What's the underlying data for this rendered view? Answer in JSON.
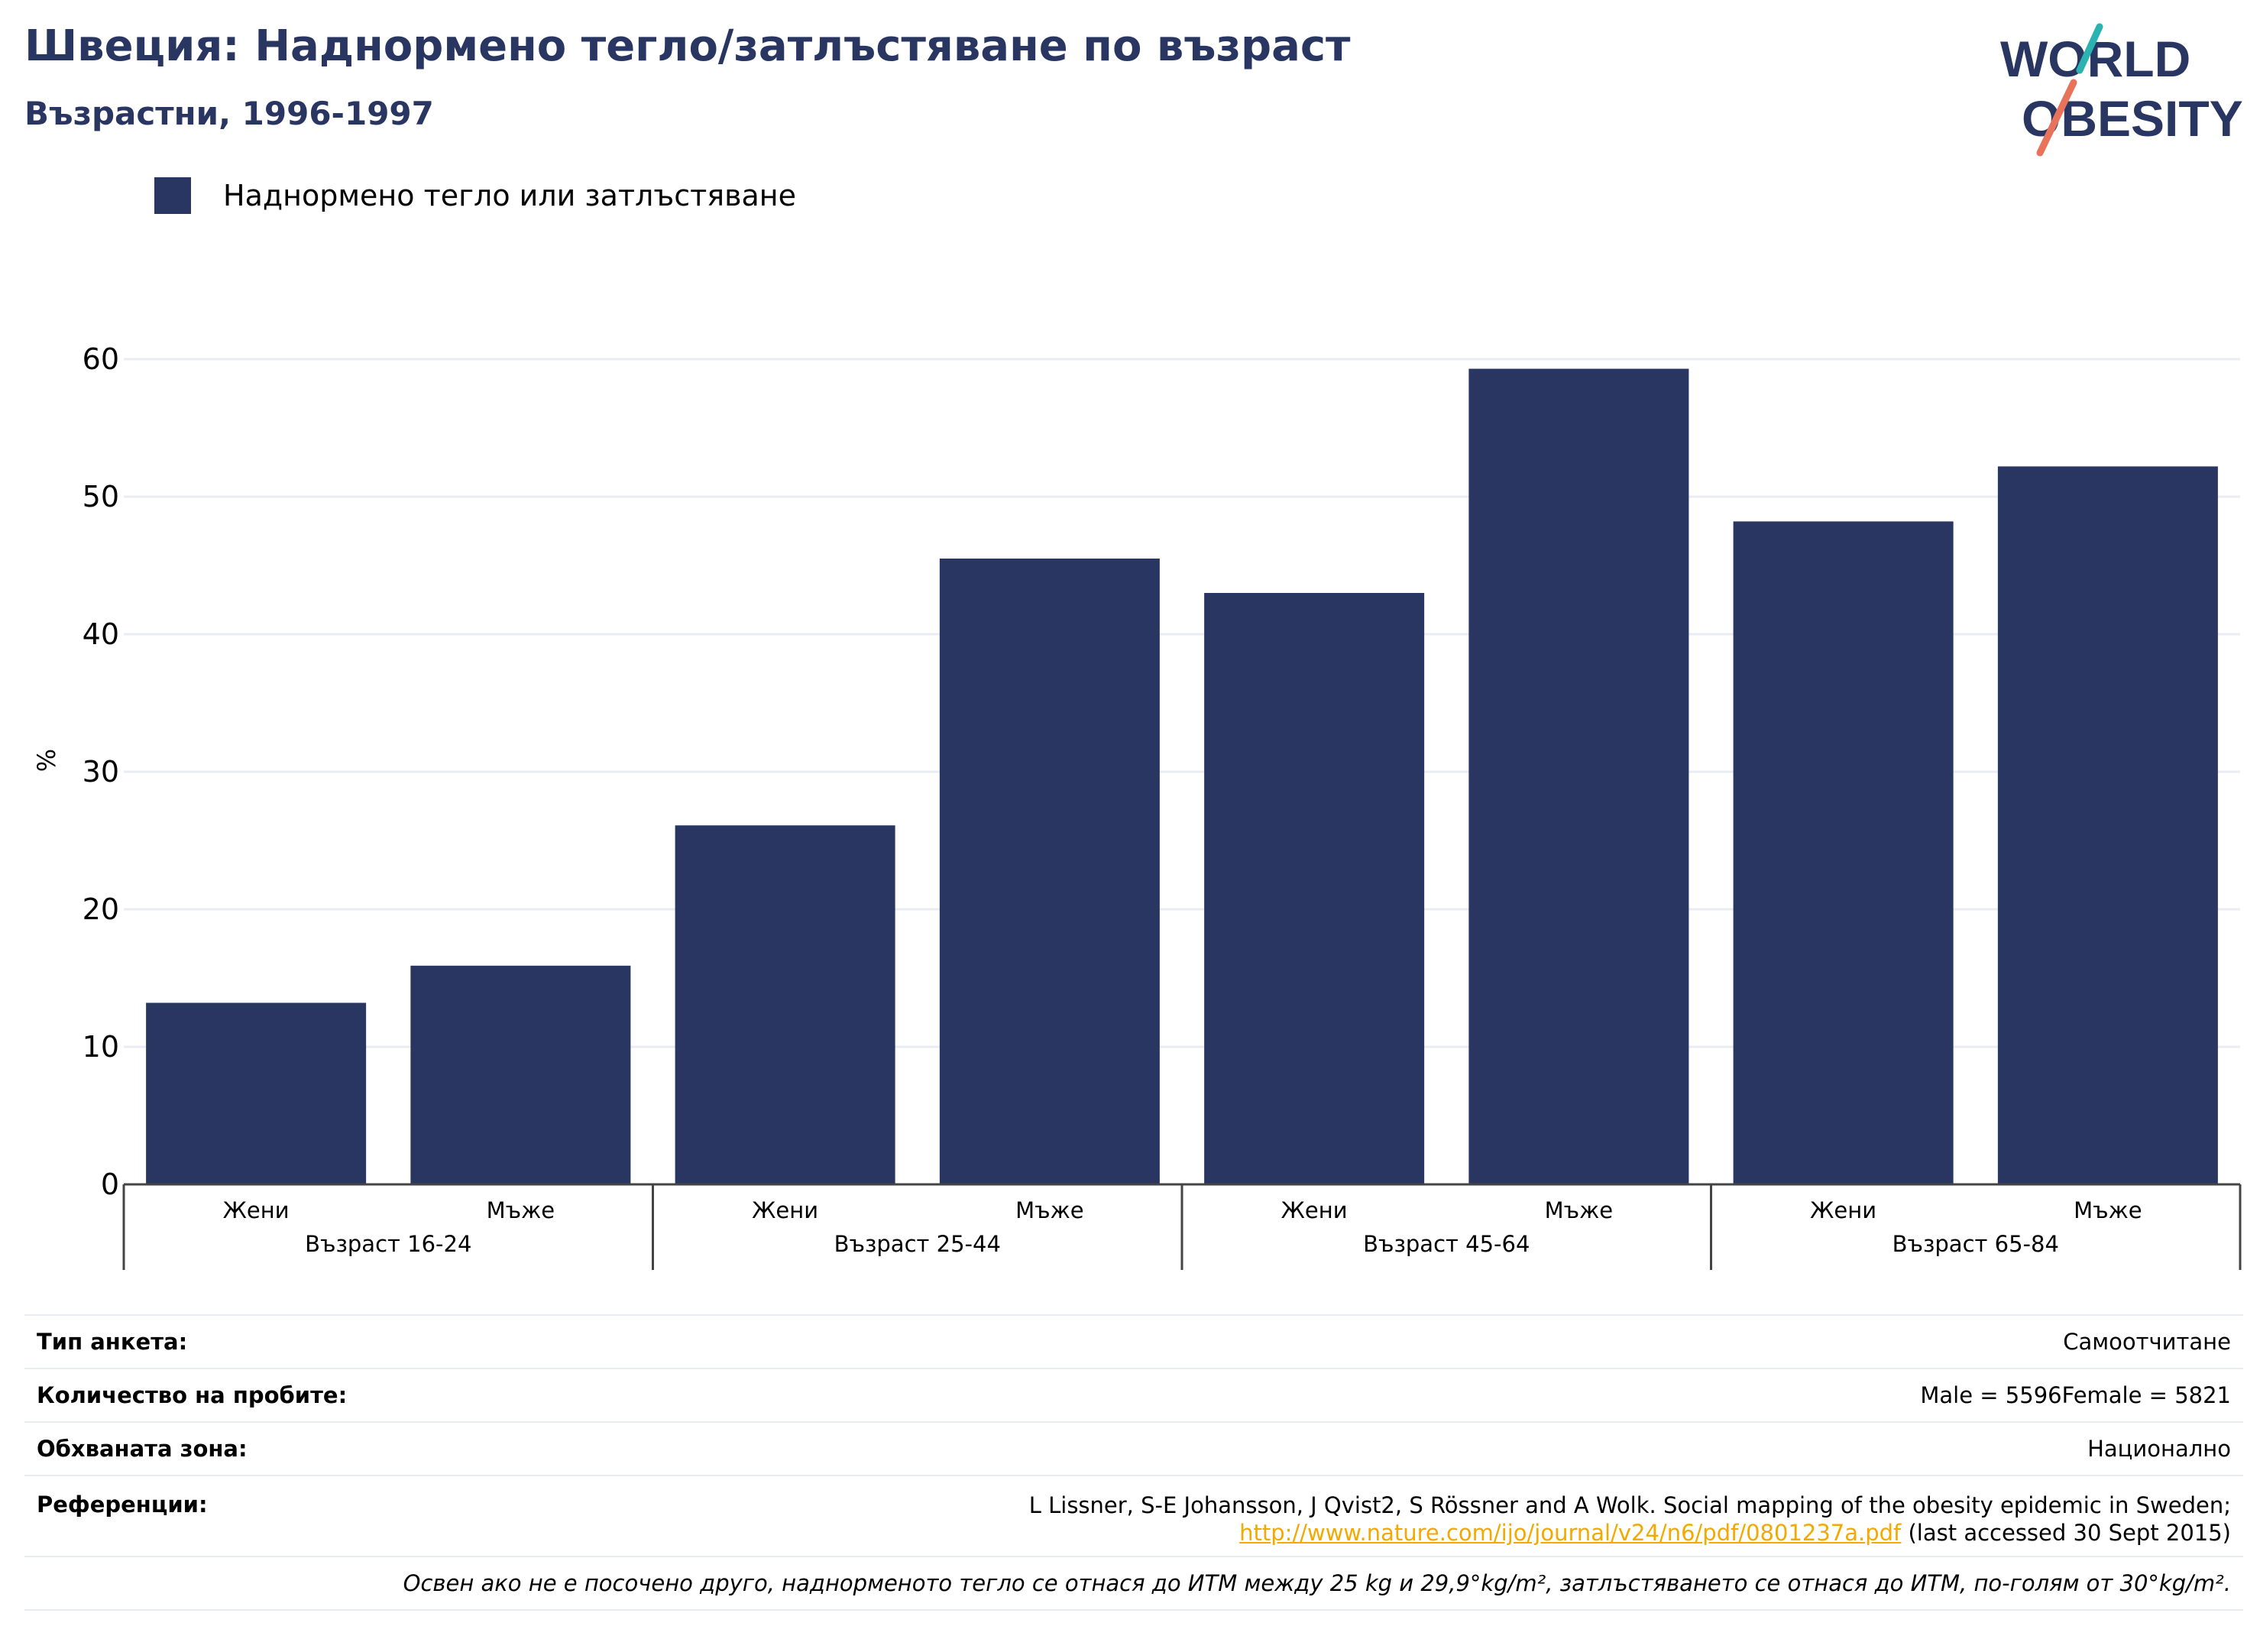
{
  "header": {
    "title": "Швеция: Наднормено тегло/затлъстяване по възраст",
    "subtitle": "Възрастни, 1996-1997"
  },
  "logo": {
    "line1": "WORLD",
    "line2": "OBESITY"
  },
  "colors": {
    "bar": "#2a3662",
    "title": "#2a3662",
    "grid": "#e9ecf3",
    "link": "#f2a900",
    "logo_teal": "#2bb3b1",
    "logo_coral": "#e8735a"
  },
  "chart_data": {
    "type": "bar",
    "ylabel": "%",
    "ylim": [
      0,
      60
    ],
    "yticks": [
      0,
      10,
      20,
      30,
      40,
      50,
      60
    ],
    "grid": true,
    "legend_position": "top-left",
    "groups": [
      "Възраст 16-24",
      "Възраст 25-44",
      "Възраст 45-64",
      "Възраст 65-84"
    ],
    "categories": [
      "Жени",
      "Мъже",
      "Жени",
      "Мъже",
      "Жени",
      "Мъже",
      "Жени",
      "Мъже"
    ],
    "series": [
      {
        "name": "Наднормено тегло или затлъстяване",
        "values": [
          13.2,
          15.9,
          26.1,
          45.5,
          43.0,
          59.3,
          48.2,
          52.2
        ]
      }
    ]
  },
  "info": {
    "survey_type_label": "Тип анкета:",
    "survey_type_value": "Самоотчитане",
    "sample_size_label": "Количество на пробите:",
    "sample_size_value": "Male = 5596Female = 5821",
    "area_label": "Обхваната зона:",
    "area_value": "Национално",
    "references_label": "Референции:",
    "references_text": "L Lissner, S-E Johansson, J Qvist2, S Rössner and A Wolk. Social mapping of the obesity epidemic in Sweden;",
    "references_link": "http://www.nature.com/ijo/journal/v24/n6/pdf/0801237a.pdf",
    "references_accessed": " (last accessed 30 Sept 2015)",
    "note": "Освен ако не е посочено друго, наднорменото тегло се отнася до ИТМ между 25 kg и 29,9°kg/m², затлъстяването се отнася до ИТМ, по-голям от 30°kg/m²."
  }
}
